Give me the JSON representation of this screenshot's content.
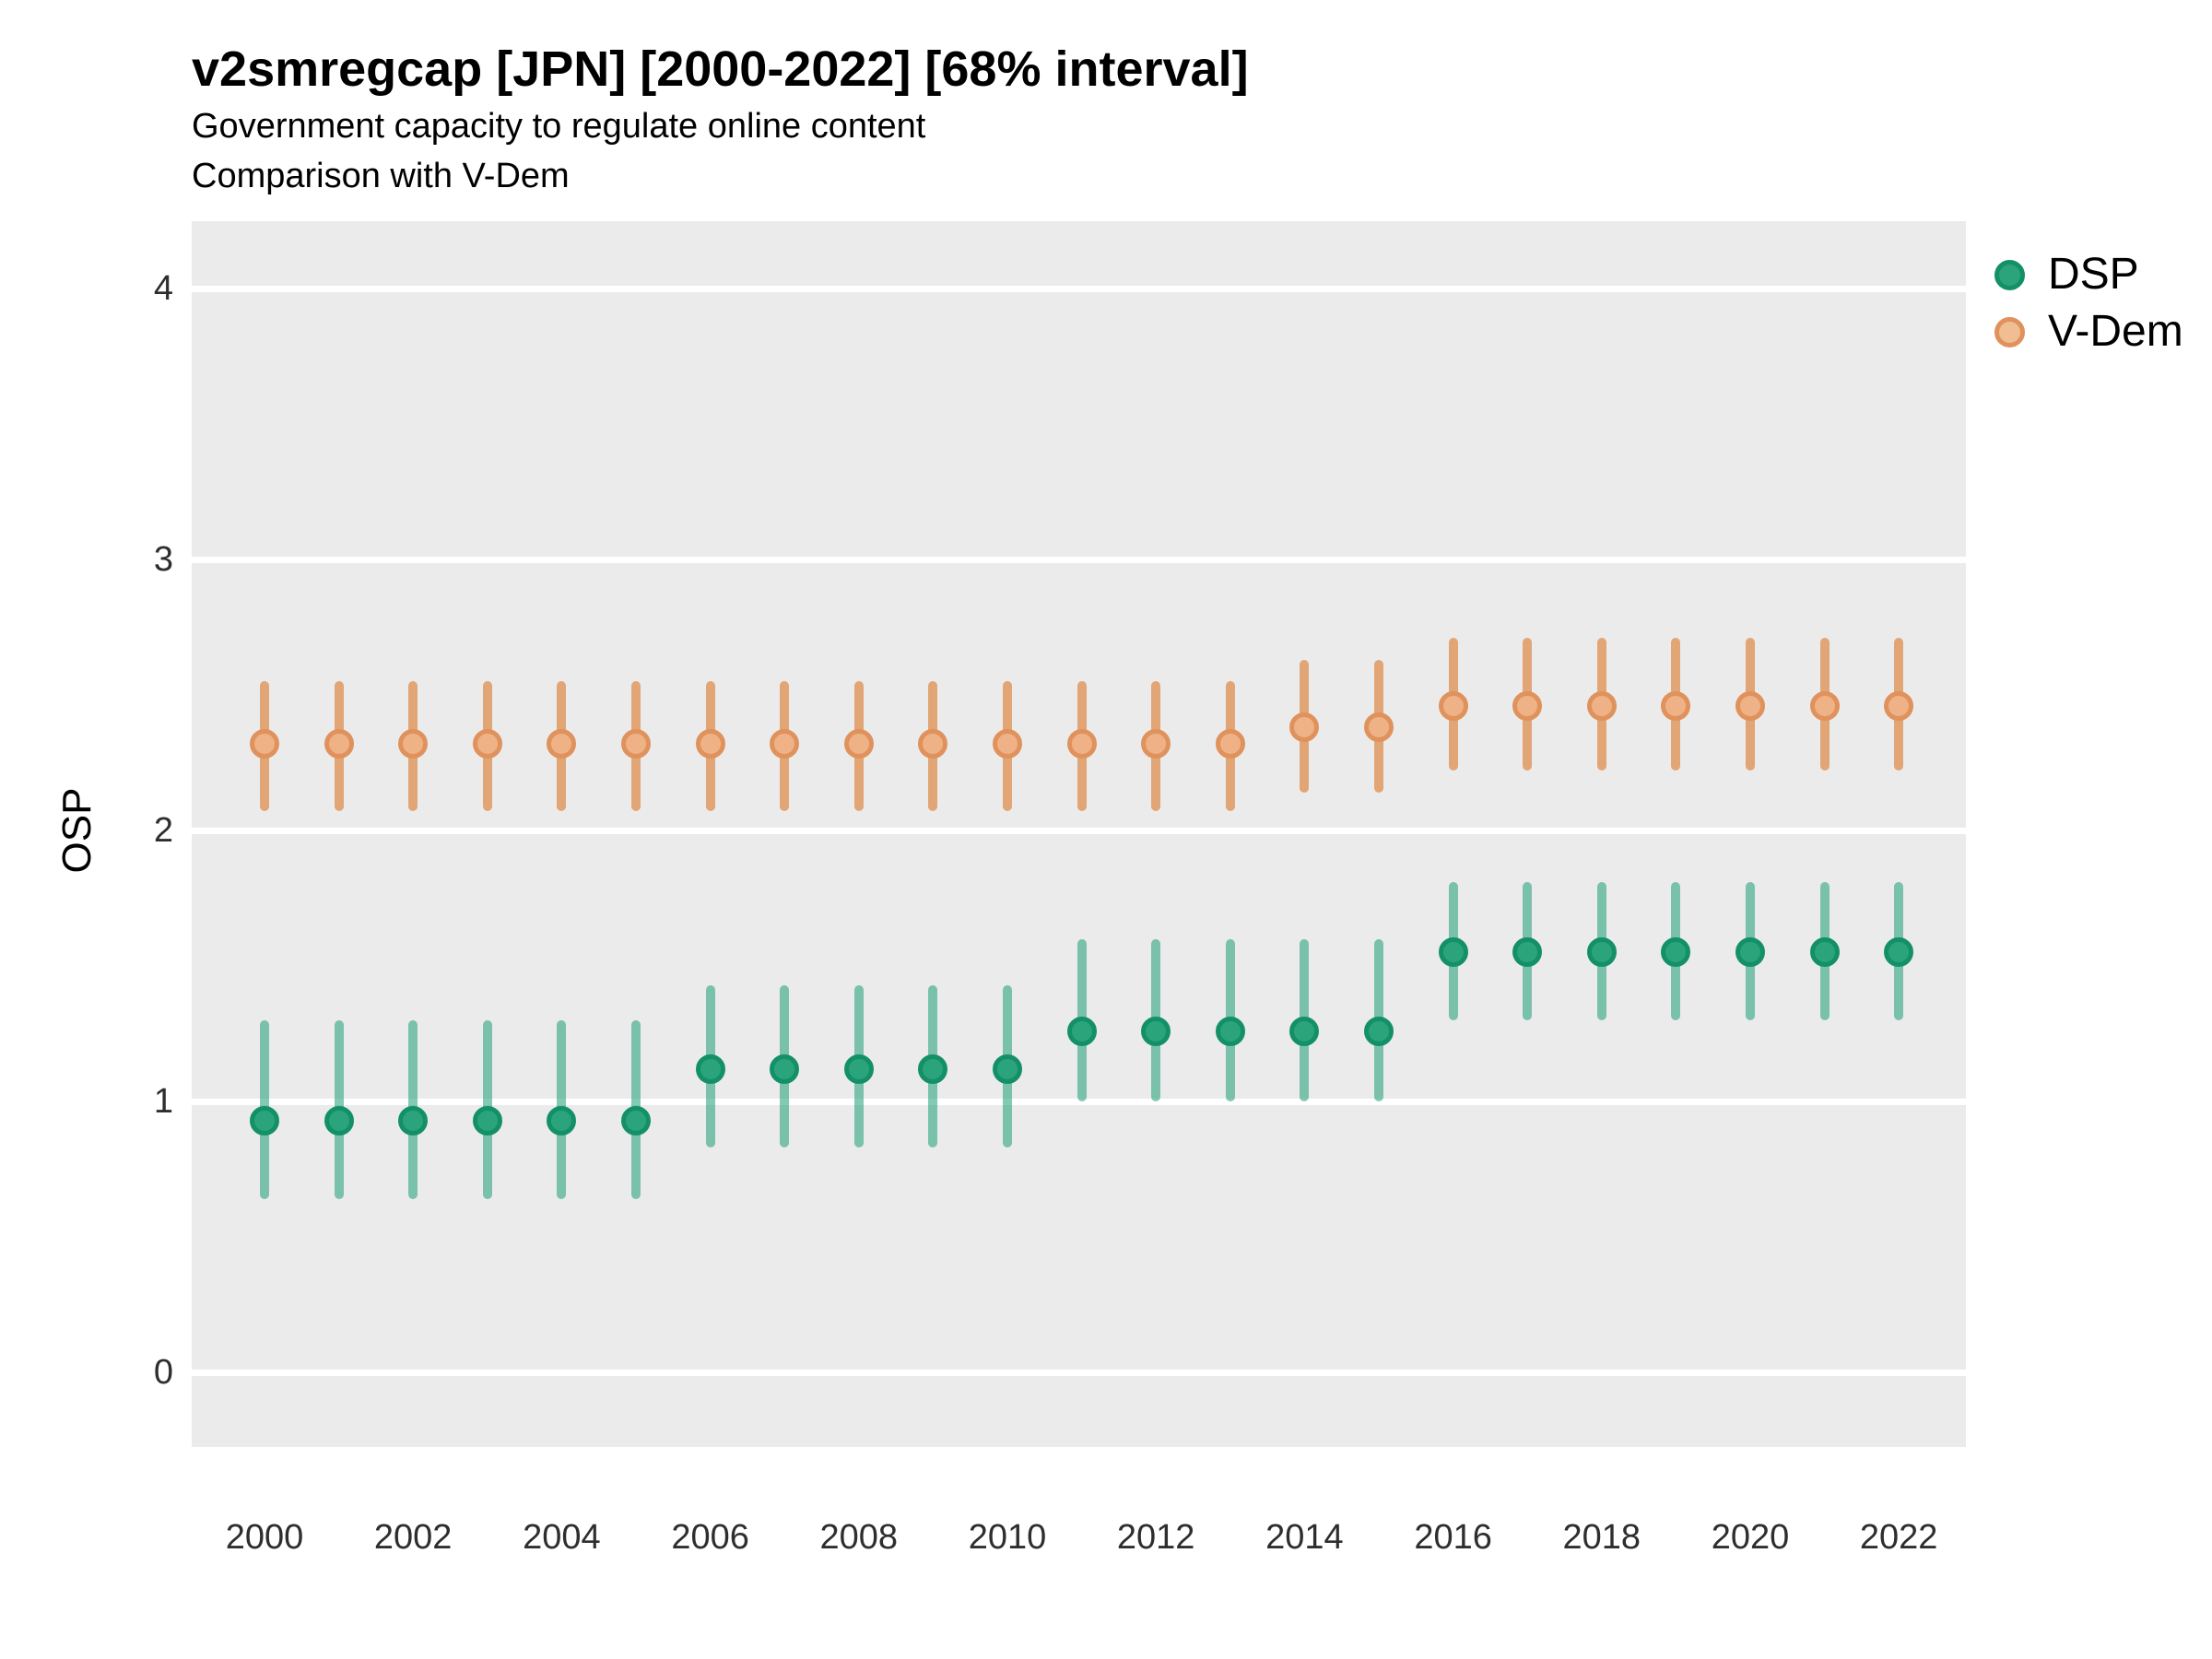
{
  "title": "v2smregcap [JPN] [2000-2022] [68% interval]",
  "subtitle": "Government capacity to regulate online content",
  "subtitle2": "Comparison with V-Dem",
  "chart_data": {
    "type": "pointrange",
    "title": "v2smregcap [JPN] [2000-2022] [68% interval]",
    "subtitle": "Government capacity to regulate online content",
    "comparison_note": "Comparison with V-Dem",
    "interval": "68%",
    "xlabel": "",
    "ylabel": "OSP",
    "ylim": [
      -0.29,
      4.25
    ],
    "y_ticks": [
      "0",
      "1",
      "2",
      "3",
      "4"
    ],
    "y_tick_values": [
      0,
      1,
      2,
      3,
      4
    ],
    "x_ticks": [
      "2000",
      "2002",
      "2004",
      "2006",
      "2008",
      "2010",
      "2012",
      "2014",
      "2016",
      "2018",
      "2020",
      "2022"
    ],
    "x_tick_values": [
      2000,
      2002,
      2004,
      2006,
      2008,
      2010,
      2012,
      2014,
      2016,
      2018,
      2020,
      2022
    ],
    "grid": "major-horizontal-only",
    "legend_position": "top-right",
    "panel_bg": "#EBEBEB",
    "grid_color": "#FFFFFF",
    "series": [
      {
        "name": "V-Dem",
        "point_fill": "#EFB286",
        "point_stroke": "#E0925C",
        "bar_color": "rgba(217,95,2,0.50)",
        "points": [
          {
            "year": 2000,
            "value": 2.32,
            "lo": 2.07,
            "hi": 2.55
          },
          {
            "year": 2001,
            "value": 2.32,
            "lo": 2.07,
            "hi": 2.55
          },
          {
            "year": 2002,
            "value": 2.32,
            "lo": 2.07,
            "hi": 2.55
          },
          {
            "year": 2003,
            "value": 2.32,
            "lo": 2.07,
            "hi": 2.55
          },
          {
            "year": 2004,
            "value": 2.32,
            "lo": 2.07,
            "hi": 2.55
          },
          {
            "year": 2005,
            "value": 2.32,
            "lo": 2.07,
            "hi": 2.55
          },
          {
            "year": 2006,
            "value": 2.32,
            "lo": 2.07,
            "hi": 2.55
          },
          {
            "year": 2007,
            "value": 2.32,
            "lo": 2.07,
            "hi": 2.55
          },
          {
            "year": 2008,
            "value": 2.32,
            "lo": 2.07,
            "hi": 2.55
          },
          {
            "year": 2009,
            "value": 2.32,
            "lo": 2.07,
            "hi": 2.55
          },
          {
            "year": 2010,
            "value": 2.32,
            "lo": 2.07,
            "hi": 2.55
          },
          {
            "year": 2011,
            "value": 2.32,
            "lo": 2.07,
            "hi": 2.55
          },
          {
            "year": 2012,
            "value": 2.32,
            "lo": 2.07,
            "hi": 2.55
          },
          {
            "year": 2013,
            "value": 2.32,
            "lo": 2.07,
            "hi": 2.55
          },
          {
            "year": 2014,
            "value": 2.38,
            "lo": 2.14,
            "hi": 2.63
          },
          {
            "year": 2015,
            "value": 2.38,
            "lo": 2.14,
            "hi": 2.63
          },
          {
            "year": 2016,
            "value": 2.46,
            "lo": 2.22,
            "hi": 2.71
          },
          {
            "year": 2017,
            "value": 2.46,
            "lo": 2.22,
            "hi": 2.71
          },
          {
            "year": 2018,
            "value": 2.46,
            "lo": 2.22,
            "hi": 2.71
          },
          {
            "year": 2019,
            "value": 2.46,
            "lo": 2.22,
            "hi": 2.71
          },
          {
            "year": 2020,
            "value": 2.46,
            "lo": 2.22,
            "hi": 2.71
          },
          {
            "year": 2021,
            "value": 2.46,
            "lo": 2.22,
            "hi": 2.71
          },
          {
            "year": 2022,
            "value": 2.46,
            "lo": 2.22,
            "hi": 2.71
          }
        ]
      },
      {
        "name": "DSP",
        "point_fill": "#2BA47C",
        "point_stroke": "#149069",
        "bar_color": "rgba(27,158,119,0.55)",
        "points": [
          {
            "year": 2000,
            "value": 0.93,
            "lo": 0.64,
            "hi": 1.3
          },
          {
            "year": 2001,
            "value": 0.93,
            "lo": 0.64,
            "hi": 1.3
          },
          {
            "year": 2002,
            "value": 0.93,
            "lo": 0.64,
            "hi": 1.3
          },
          {
            "year": 2003,
            "value": 0.93,
            "lo": 0.64,
            "hi": 1.3
          },
          {
            "year": 2004,
            "value": 0.93,
            "lo": 0.64,
            "hi": 1.3
          },
          {
            "year": 2005,
            "value": 0.93,
            "lo": 0.64,
            "hi": 1.3
          },
          {
            "year": 2006,
            "value": 1.12,
            "lo": 0.83,
            "hi": 1.43
          },
          {
            "year": 2007,
            "value": 1.12,
            "lo": 0.83,
            "hi": 1.43
          },
          {
            "year": 2008,
            "value": 1.12,
            "lo": 0.83,
            "hi": 1.43
          },
          {
            "year": 2009,
            "value": 1.12,
            "lo": 0.83,
            "hi": 1.43
          },
          {
            "year": 2010,
            "value": 1.12,
            "lo": 0.83,
            "hi": 1.43
          },
          {
            "year": 2011,
            "value": 1.26,
            "lo": 1.0,
            "hi": 1.6
          },
          {
            "year": 2012,
            "value": 1.26,
            "lo": 1.0,
            "hi": 1.6
          },
          {
            "year": 2013,
            "value": 1.26,
            "lo": 1.0,
            "hi": 1.6
          },
          {
            "year": 2014,
            "value": 1.26,
            "lo": 1.0,
            "hi": 1.6
          },
          {
            "year": 2015,
            "value": 1.26,
            "lo": 1.0,
            "hi": 1.6
          },
          {
            "year": 2016,
            "value": 1.55,
            "lo": 1.3,
            "hi": 1.81
          },
          {
            "year": 2017,
            "value": 1.55,
            "lo": 1.3,
            "hi": 1.81
          },
          {
            "year": 2018,
            "value": 1.55,
            "lo": 1.3,
            "hi": 1.81
          },
          {
            "year": 2019,
            "value": 1.55,
            "lo": 1.3,
            "hi": 1.81
          },
          {
            "year": 2020,
            "value": 1.55,
            "lo": 1.3,
            "hi": 1.81
          },
          {
            "year": 2021,
            "value": 1.55,
            "lo": 1.3,
            "hi": 1.81
          },
          {
            "year": 2022,
            "value": 1.55,
            "lo": 1.3,
            "hi": 1.81
          }
        ]
      }
    ],
    "legend": [
      {
        "label": "DSP",
        "fill": "#2BA47C",
        "stroke": "#149069"
      },
      {
        "label": "V-Dem",
        "fill": "#F1BD92",
        "stroke": "#E0925C"
      }
    ]
  }
}
